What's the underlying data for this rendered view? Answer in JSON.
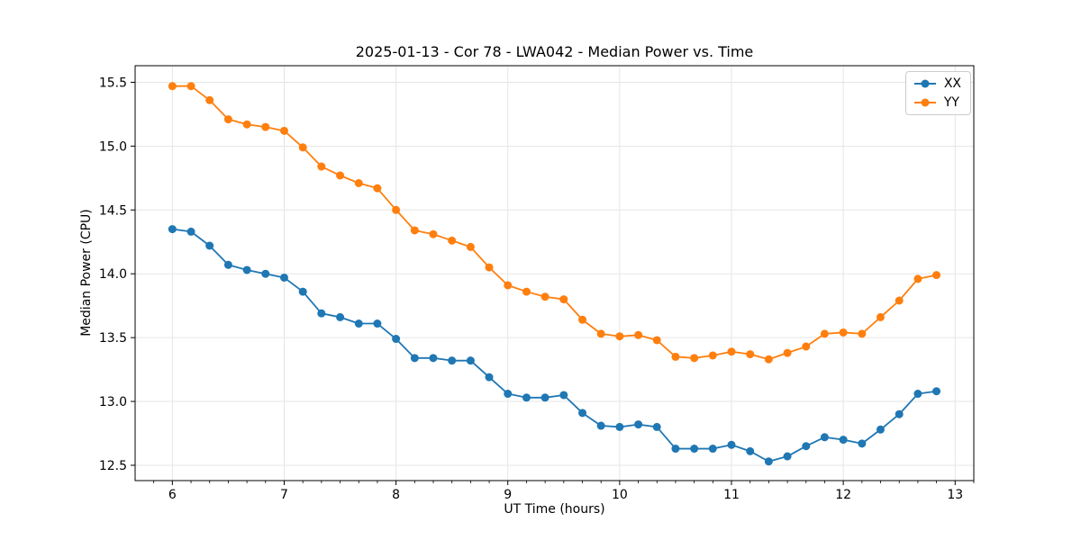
{
  "chart_data": {
    "type": "line",
    "title": "2025-01-13 - Cor 78 - LWA042 - Median Power vs. Time",
    "xlabel": "UT Time (hours)",
    "ylabel": "Median Power (CPU)",
    "xlim": [
      5.667,
      13.167
    ],
    "ylim": [
      12.38,
      15.63
    ],
    "grid": true,
    "background_color": "#ffffff",
    "grid_color": "#e5e5e5",
    "x_ticks": {
      "values": [
        6,
        7,
        8,
        9,
        10,
        11,
        12,
        13
      ],
      "labels": [
        "6",
        "7",
        "8",
        "9",
        "10",
        "11",
        "12",
        "13"
      ],
      "minor_step": 0.16667
    },
    "y_ticks": {
      "values": [
        12.5,
        13.0,
        13.5,
        14.0,
        14.5,
        15.0,
        15.5
      ],
      "labels": [
        "12.5",
        "13.0",
        "13.5",
        "14.0",
        "14.5",
        "15.0",
        "15.5"
      ]
    },
    "legend": {
      "position": "upper right",
      "entries": [
        {
          "name": "XX",
          "color": "#1f77b4"
        },
        {
          "name": "YY",
          "color": "#ff7f0e"
        }
      ]
    },
    "marker": "circle",
    "x": [
      6.0,
      6.167,
      6.333,
      6.5,
      6.667,
      6.833,
      7.0,
      7.167,
      7.333,
      7.5,
      7.667,
      7.833,
      8.0,
      8.167,
      8.333,
      8.5,
      8.667,
      8.833,
      9.0,
      9.167,
      9.333,
      9.5,
      9.667,
      9.833,
      10.0,
      10.167,
      10.333,
      10.5,
      10.667,
      10.833,
      11.0,
      11.167,
      11.333,
      11.5,
      11.667,
      11.833,
      12.0,
      12.167,
      12.333,
      12.5,
      12.667,
      12.833
    ],
    "series": [
      {
        "name": "XX",
        "color": "#1f77b4",
        "values": [
          14.35,
          14.33,
          14.22,
          14.07,
          14.03,
          14.0,
          13.97,
          13.86,
          13.69,
          13.66,
          13.61,
          13.61,
          13.49,
          13.34,
          13.34,
          13.32,
          13.32,
          13.19,
          13.06,
          13.03,
          13.03,
          13.05,
          12.91,
          12.81,
          12.8,
          12.82,
          12.8,
          12.63,
          12.63,
          12.63,
          12.66,
          12.61,
          12.53,
          12.57,
          12.65,
          12.72,
          12.7,
          12.67,
          12.78,
          12.9,
          13.06,
          13.08
        ]
      },
      {
        "name": "YY",
        "color": "#ff7f0e",
        "values": [
          15.47,
          15.47,
          15.36,
          15.21,
          15.17,
          15.15,
          15.12,
          14.99,
          14.84,
          14.77,
          14.71,
          14.67,
          14.5,
          14.34,
          14.31,
          14.26,
          14.21,
          14.05,
          13.91,
          13.86,
          13.82,
          13.8,
          13.64,
          13.53,
          13.51,
          13.52,
          13.48,
          13.35,
          13.34,
          13.36,
          13.39,
          13.37,
          13.33,
          13.38,
          13.43,
          13.53,
          13.54,
          13.53,
          13.66,
          13.79,
          13.96,
          13.99
        ]
      }
    ]
  }
}
